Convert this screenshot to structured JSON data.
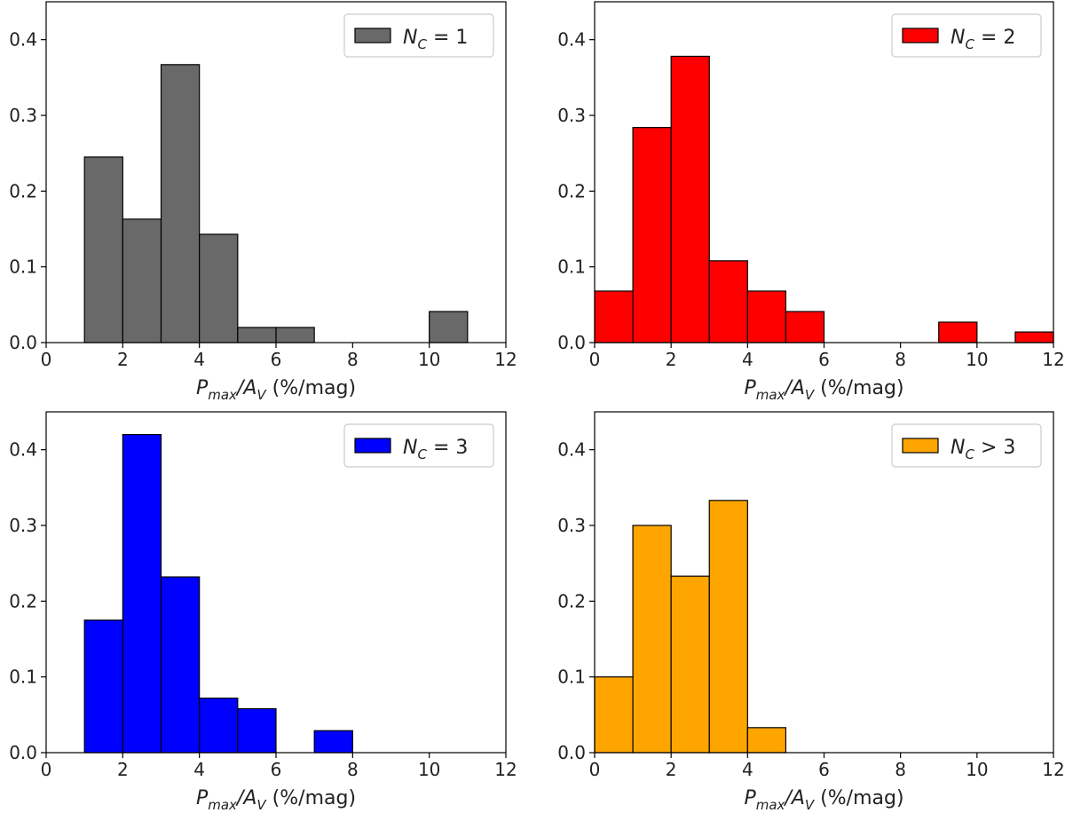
{
  "chart_data": [
    {
      "type": "bar",
      "panel": "top-left",
      "legend_label": "N_C = 1",
      "legend_html": {
        "main": "N",
        "sub": "C",
        "rel": " = 1"
      },
      "color": "#696969",
      "bin_edges": [
        1,
        2,
        3,
        4,
        5,
        6,
        7,
        8,
        9,
        10,
        11
      ],
      "values": [
        0.245,
        0.163,
        0.367,
        0.143,
        0.02,
        0.02,
        0,
        0,
        0,
        0.041
      ],
      "xlim": [
        0,
        12
      ],
      "ylim": [
        0,
        0.45
      ],
      "xticks": [
        0,
        2,
        4,
        6,
        8,
        10,
        12
      ],
      "yticks": [
        0.0,
        0.1,
        0.2,
        0.3,
        0.4
      ],
      "xlabel": {
        "main": "P",
        "sub1": "max",
        "mid": "/A",
        "sub2": "V",
        "unit": " (%/mag)"
      },
      "legend_position": "top-right"
    },
    {
      "type": "bar",
      "panel": "top-right",
      "legend_label": "N_C = 2",
      "legend_html": {
        "main": "N",
        "sub": "C",
        "rel": " = 2"
      },
      "color": "#ff0000",
      "bin_edges": [
        0,
        1,
        2,
        3,
        4,
        5,
        6,
        7,
        8,
        9,
        10,
        11,
        12
      ],
      "values": [
        0.068,
        0.284,
        0.378,
        0.108,
        0.068,
        0.041,
        0,
        0,
        0,
        0.027,
        0,
        0.014
      ],
      "xlim": [
        0,
        12
      ],
      "ylim": [
        0,
        0.45
      ],
      "xticks": [
        0,
        2,
        4,
        6,
        8,
        10,
        12
      ],
      "yticks": [
        0.0,
        0.1,
        0.2,
        0.3,
        0.4
      ],
      "xlabel": {
        "main": "P",
        "sub1": "max",
        "mid": "/A",
        "sub2": "V",
        "unit": " (%/mag)"
      },
      "legend_position": "top-right"
    },
    {
      "type": "bar",
      "panel": "bottom-left",
      "legend_label": "N_C = 3",
      "legend_html": {
        "main": "N",
        "sub": "C",
        "rel": " = 3"
      },
      "color": "#0000ff",
      "bin_edges": [
        1,
        2,
        3,
        4,
        5,
        6,
        7,
        8
      ],
      "values": [
        0.175,
        0.42,
        0.232,
        0.072,
        0.058,
        0,
        0.029
      ],
      "xlim": [
        0,
        12
      ],
      "ylim": [
        0,
        0.45
      ],
      "xticks": [
        0,
        2,
        4,
        6,
        8,
        10,
        12
      ],
      "yticks": [
        0.0,
        0.1,
        0.2,
        0.3,
        0.4
      ],
      "xlabel": {
        "main": "P",
        "sub1": "max",
        "mid": "/A",
        "sub2": "V",
        "unit": " (%/mag)"
      },
      "legend_position": "top-right"
    },
    {
      "type": "bar",
      "panel": "bottom-right",
      "legend_label": "N_C > 3",
      "legend_html": {
        "main": "N",
        "sub": "C",
        "rel": " > 3"
      },
      "color": "#ffa500",
      "bin_edges": [
        0,
        1,
        2,
        3,
        4,
        5
      ],
      "values": [
        0.1,
        0.3,
        0.233,
        0.333,
        0.033
      ],
      "xlim": [
        0,
        12
      ],
      "ylim": [
        0,
        0.45
      ],
      "xticks": [
        0,
        2,
        4,
        6,
        8,
        10,
        12
      ],
      "yticks": [
        0.0,
        0.1,
        0.2,
        0.3,
        0.4
      ],
      "xlabel": {
        "main": "P",
        "sub1": "max",
        "mid": "/A",
        "sub2": "V",
        "unit": " (%/mag)"
      },
      "legend_position": "top-right"
    }
  ]
}
